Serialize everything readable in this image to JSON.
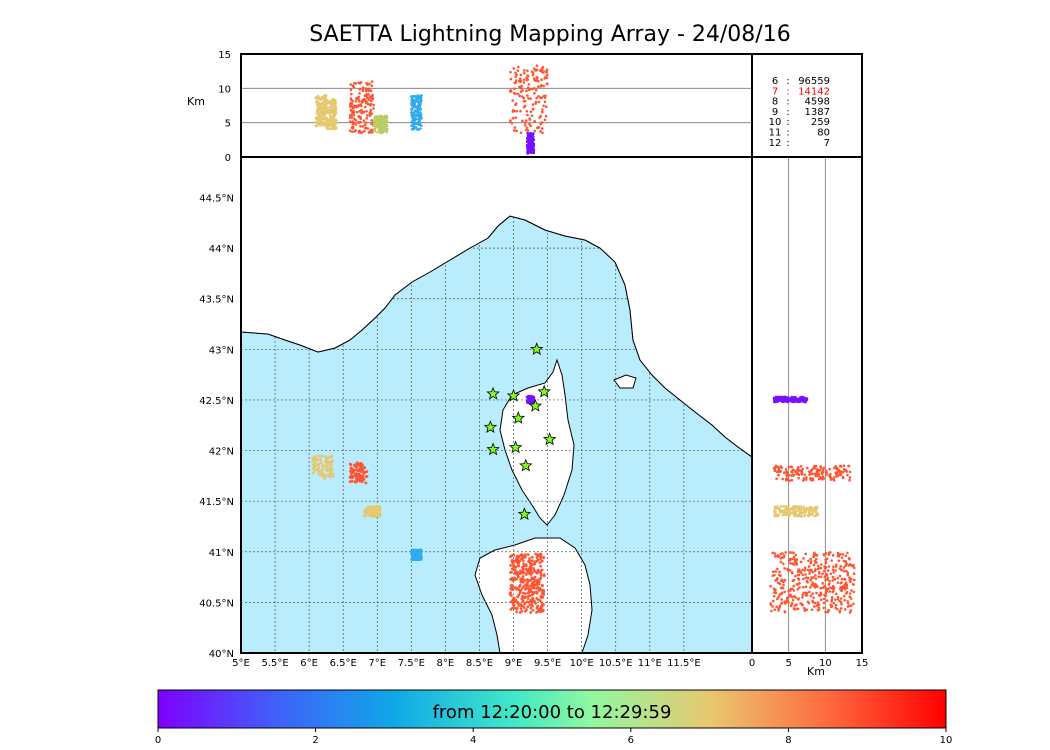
{
  "title": "SAETTA Lightning Mapping Array - 24/08/16",
  "colors": {
    "sea": "#b9ecfc",
    "land": "#ffffff",
    "rivers": "#3333ee",
    "borders": "#555555",
    "station_fill": "#7fff1e",
    "highlight_count": "#ff0000"
  },
  "chart_data": [
    {
      "name": "altitude-vs-longitude",
      "type": "scatter",
      "xlim": [
        5,
        12.5
      ],
      "ylim": [
        0,
        15
      ],
      "ylabel": "Km",
      "yticks": [
        "0",
        "5",
        "10",
        "15"
      ],
      "gridlines_y": [
        5,
        10
      ],
      "clusters": [
        {
          "lon": [
            6.1,
            6.25
          ],
          "alt": [
            4.5,
            9
          ],
          "color": "#e6c870"
        },
        {
          "lon": [
            6.25,
            6.4
          ],
          "alt": [
            4,
            8.5
          ],
          "color": "#e6c870"
        },
        {
          "lon": [
            6.6,
            6.95
          ],
          "alt": [
            3.5,
            11
          ],
          "color": "#ff5533"
        },
        {
          "lon": [
            6.95,
            7.15
          ],
          "alt": [
            3.5,
            6
          ],
          "color": "#bbcc66"
        },
        {
          "lon": [
            7.5,
            7.65
          ],
          "alt": [
            4,
            9
          ],
          "color": "#33aaee"
        },
        {
          "lon": [
            8.95,
            9.5
          ],
          "alt": [
            3.5,
            13.5
          ],
          "color": "#ff5533"
        },
        {
          "lon": [
            9.2,
            9.3
          ],
          "alt": [
            0.5,
            3.5
          ],
          "color": "#7711ff"
        }
      ]
    },
    {
      "name": "plan-view-map",
      "type": "scatter",
      "xlim": [
        5,
        12.5
      ],
      "ylim": [
        40,
        44.9
      ],
      "xticks": [
        "5°E",
        "5.5°E",
        "6°E",
        "6.5°E",
        "7°E",
        "7.5°E",
        "8°E",
        "8.5°E",
        "9°E",
        "9.5°E",
        "10°E",
        "10.5°E",
        "11°E",
        "11.5°E"
      ],
      "yticks": [
        "40°N",
        "40.5°N",
        "41°N",
        "41.5°N",
        "42°N",
        "42.5°N",
        "43°N",
        "43.5°N",
        "44°N",
        "44.5°N"
      ],
      "grid": true,
      "stations": [
        {
          "lon": 8.7,
          "lat": 42.56
        },
        {
          "lon": 9.0,
          "lat": 42.54
        },
        {
          "lon": 9.34,
          "lat": 43.0
        },
        {
          "lon": 9.45,
          "lat": 42.58
        },
        {
          "lon": 9.32,
          "lat": 42.44
        },
        {
          "lon": 9.07,
          "lat": 42.32
        },
        {
          "lon": 8.66,
          "lat": 42.23
        },
        {
          "lon": 8.7,
          "lat": 42.01
        },
        {
          "lon": 9.03,
          "lat": 42.03
        },
        {
          "lon": 9.53,
          "lat": 42.11
        },
        {
          "lon": 9.18,
          "lat": 41.85
        },
        {
          "lon": 9.16,
          "lat": 41.37
        }
      ],
      "clusters": [
        {
          "lon": [
            6.05,
            6.35
          ],
          "lat": [
            41.72,
            41.95
          ],
          "color": "#e6c870"
        },
        {
          "lon": [
            6.6,
            6.85
          ],
          "lat": [
            41.68,
            41.88
          ],
          "color": "#ff5533"
        },
        {
          "lon": [
            6.8,
            7.05
          ],
          "lat": [
            41.35,
            41.45
          ],
          "color": "#e6c870"
        },
        {
          "lon": [
            7.5,
            7.65
          ],
          "lat": [
            40.92,
            41.02
          ],
          "color": "#33aaee"
        },
        {
          "lon": [
            9.2,
            9.3
          ],
          "lat": [
            42.47,
            42.54
          ],
          "color": "#7711ff"
        },
        {
          "lon": [
            8.95,
            9.45
          ],
          "lat": [
            40.4,
            40.98
          ],
          "color": "#ff5533"
        }
      ]
    },
    {
      "name": "latitude-vs-altitude",
      "type": "scatter",
      "xlim": [
        0,
        15
      ],
      "ylim": [
        40,
        44.9
      ],
      "xlabel": "Km",
      "xticks": [
        "0",
        "5",
        "10",
        "15"
      ],
      "gridlines_x": [
        5,
        10
      ],
      "clusters": [
        {
          "alt": [
            3,
            7.5
          ],
          "lat": [
            42.48,
            42.53
          ],
          "color": "#7711ff"
        },
        {
          "alt": [
            3,
            13.5
          ],
          "lat": [
            41.7,
            41.85
          ],
          "color": "#ff5533"
        },
        {
          "alt": [
            3,
            9
          ],
          "lat": [
            41.35,
            41.45
          ],
          "color": "#e6c870"
        },
        {
          "alt": [
            2.5,
            14
          ],
          "lat": [
            40.4,
            41.0
          ],
          "color": "#ff5533"
        }
      ]
    }
  ],
  "counts": [
    {
      "label": "6",
      "value": "96559"
    },
    {
      "label": "7",
      "value": "14142"
    },
    {
      "label": "8",
      "value": "4598"
    },
    {
      "label": "9",
      "value": "1387"
    },
    {
      "label": "10",
      "value": "259"
    },
    {
      "label": "11",
      "value": "80"
    },
    {
      "label": "12",
      "value": "7"
    }
  ],
  "colorbar": {
    "min": 0,
    "max": 10,
    "ticks": [
      "0",
      "2",
      "4",
      "6",
      "8",
      "10"
    ],
    "label": "from 12:20:00 to 12:29:59"
  }
}
